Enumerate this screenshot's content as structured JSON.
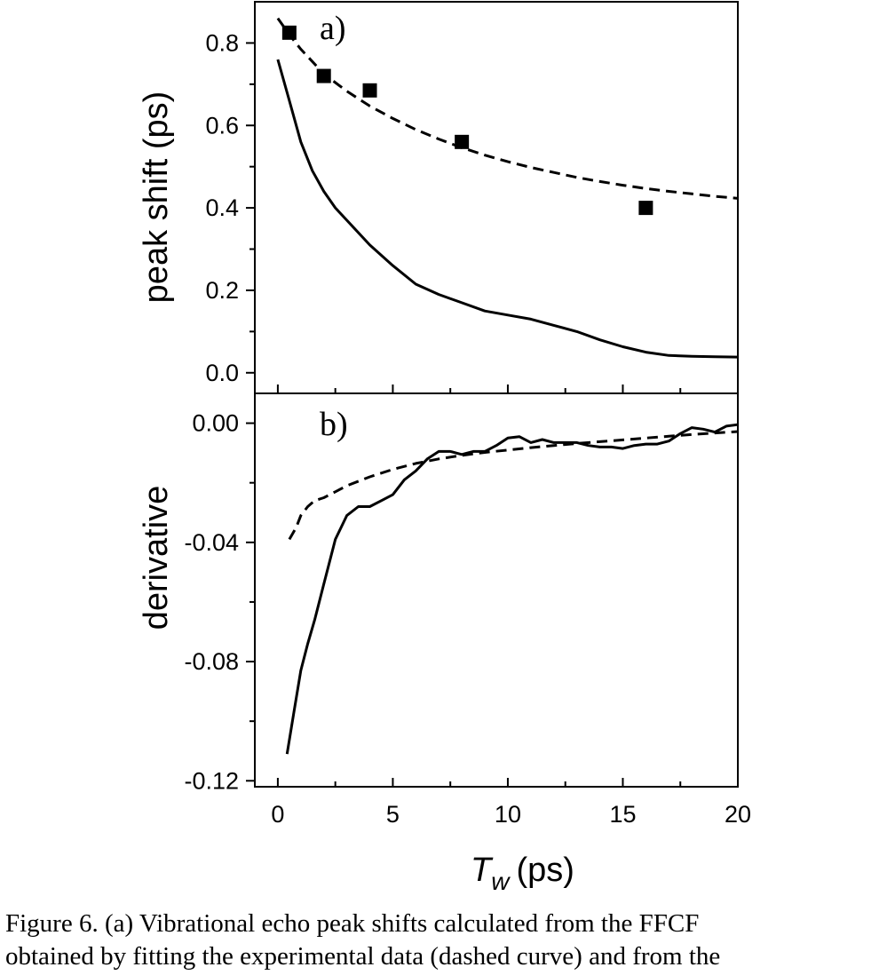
{
  "chart_data": [
    {
      "type": "line",
      "panel_label": "a)",
      "ylabel": "peak shift (ps)",
      "xlim": [
        -1,
        20
      ],
      "ylim": [
        -0.05,
        0.9
      ],
      "x_ticks": [
        0,
        5,
        10,
        15,
        20
      ],
      "y_ticks": [
        0.0,
        0.2,
        0.4,
        0.6,
        0.8
      ],
      "y_tick_labels": [
        "0.0",
        "0.2",
        "0.4",
        "0.6",
        "0.8"
      ],
      "series": [
        {
          "style": "dashed",
          "x": [
            0,
            0.5,
            1,
            1.5,
            2,
            3,
            4,
            5,
            6,
            7,
            8,
            9,
            10,
            11,
            12,
            13,
            14,
            15,
            16,
            17,
            18,
            19,
            20
          ],
          "y": [
            0.86,
            0.82,
            0.785,
            0.755,
            0.725,
            0.683,
            0.647,
            0.617,
            0.59,
            0.567,
            0.546,
            0.528,
            0.512,
            0.498,
            0.486,
            0.474,
            0.464,
            0.455,
            0.447,
            0.44,
            0.434,
            0.428,
            0.423
          ]
        },
        {
          "style": "solid",
          "x": [
            0,
            0.5,
            1,
            1.5,
            2,
            2.5,
            3,
            4,
            5,
            6,
            7,
            8,
            9,
            10,
            11,
            12,
            13,
            14,
            15,
            16,
            17,
            18,
            19,
            20
          ],
          "y": [
            0.76,
            0.66,
            0.56,
            0.49,
            0.44,
            0.4,
            0.37,
            0.31,
            0.26,
            0.215,
            0.19,
            0.17,
            0.15,
            0.14,
            0.13,
            0.115,
            0.1,
            0.08,
            0.063,
            0.05,
            0.042,
            0.04,
            0.039,
            0.038
          ]
        },
        {
          "style": "markers",
          "marker": "square",
          "x": [
            0.5,
            2,
            4,
            8,
            16
          ],
          "y": [
            0.825,
            0.72,
            0.685,
            0.56,
            0.4
          ]
        }
      ]
    },
    {
      "type": "line",
      "panel_label": "b)",
      "ylabel": "derivative",
      "xlabel_main": "T",
      "xlabel_sub": "w",
      "xlabel_unit": "(ps)",
      "xlim": [
        -1,
        20
      ],
      "ylim": [
        -0.122,
        0.01
      ],
      "x_ticks": [
        0,
        5,
        10,
        15,
        20
      ],
      "x_tick_labels": [
        "0",
        "5",
        "10",
        "15",
        "20"
      ],
      "y_ticks": [
        0.0,
        -0.04,
        -0.08,
        -0.12
      ],
      "y_tick_labels": [
        "0.00",
        "-0.04",
        "-0.08",
        "-0.12"
      ],
      "series": [
        {
          "style": "dashed",
          "x": [
            0.5,
            0.8,
            1,
            1.3,
            1.6,
            2,
            2.5,
            3,
            4,
            5,
            6,
            7,
            8,
            9,
            10,
            11,
            12,
            13,
            14,
            15,
            16,
            17,
            18,
            19,
            20
          ],
          "y": [
            -0.039,
            -0.035,
            -0.031,
            -0.028,
            -0.026,
            -0.025,
            -0.023,
            -0.021,
            -0.018,
            -0.0155,
            -0.0135,
            -0.012,
            -0.0108,
            -0.0098,
            -0.009,
            -0.0082,
            -0.0075,
            -0.0068,
            -0.0062,
            -0.0056,
            -0.005,
            -0.0044,
            -0.0038,
            -0.0033,
            -0.0028
          ]
        },
        {
          "style": "solid",
          "x": [
            0.4,
            0.7,
            1,
            1.3,
            1.6,
            2,
            2.5,
            3,
            3.5,
            4,
            4.5,
            5,
            5.5,
            6,
            6.5,
            7,
            7.5,
            8,
            8.5,
            9,
            9.5,
            10,
            10.5,
            11,
            11.5,
            12,
            12.5,
            13,
            13.5,
            14,
            14.5,
            15,
            15.5,
            16,
            16.5,
            17,
            17.5,
            18,
            18.5,
            19,
            19.5,
            20
          ],
          "y": [
            -0.111,
            -0.097,
            -0.083,
            -0.074,
            -0.066,
            -0.054,
            -0.039,
            -0.031,
            -0.028,
            -0.028,
            -0.026,
            -0.024,
            -0.019,
            -0.016,
            -0.012,
            -0.0095,
            -0.0095,
            -0.0105,
            -0.0095,
            -0.0095,
            -0.0075,
            -0.005,
            -0.0045,
            -0.0065,
            -0.0055,
            -0.0065,
            -0.0065,
            -0.0065,
            -0.0075,
            -0.008,
            -0.008,
            -0.0085,
            -0.0075,
            -0.007,
            -0.007,
            -0.006,
            -0.0035,
            -0.0015,
            -0.002,
            -0.003,
            -0.001,
            -0.0005
          ]
        }
      ]
    }
  ],
  "caption": {
    "line1": "Figure 6.  (a) Vibrational echo peak shifts calculated from the FFCF",
    "line2": "obtained by fitting the experimental data (dashed curve) and from the"
  }
}
